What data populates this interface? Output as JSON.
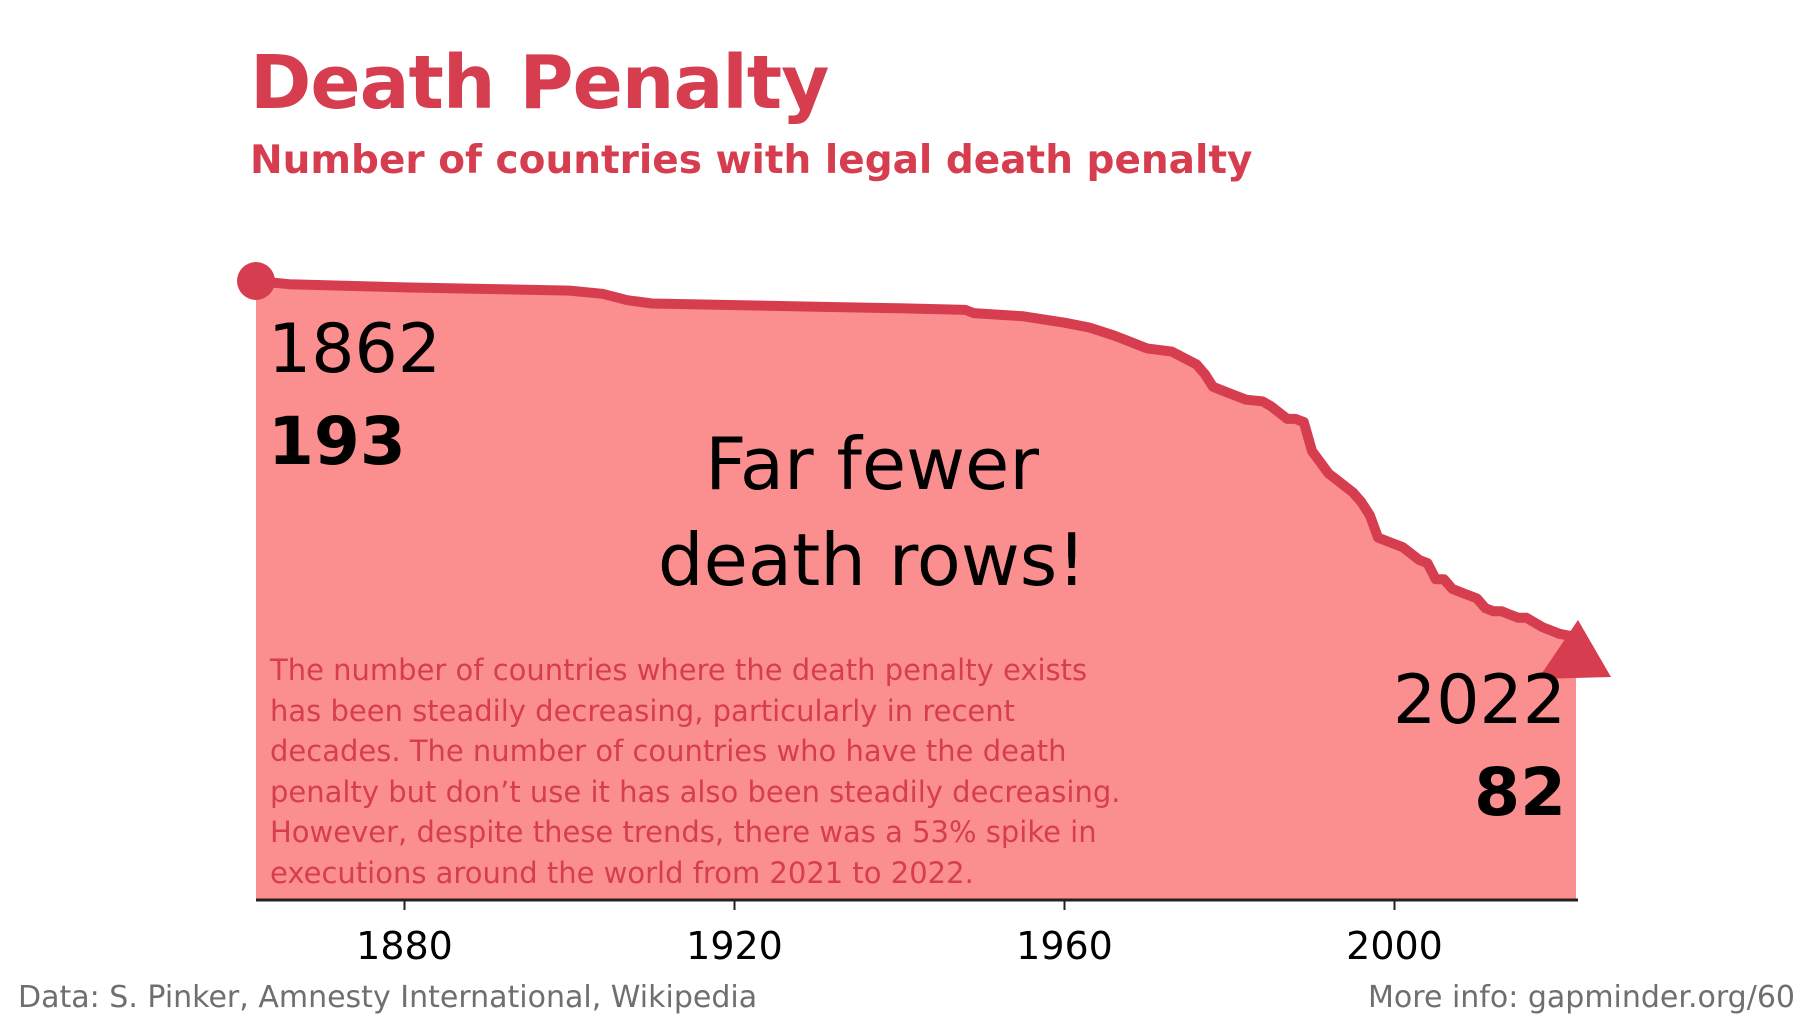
{
  "chart_data": {
    "type": "area",
    "title": "Death Penalty",
    "subtitle": "Number of countries with legal death penalty",
    "x": [
      1862,
      1866,
      1880,
      1890,
      1900,
      1904,
      1907,
      1910,
      1920,
      1930,
      1940,
      1948,
      1949,
      1955,
      1960,
      1963,
      1966,
      1968,
      1970,
      1973,
      1976,
      1977,
      1978,
      1980,
      1982,
      1984,
      1985,
      1987,
      1988,
      1989,
      1990,
      1992,
      1993,
      1995,
      1996,
      1997,
      1998,
      2000,
      2001,
      2002,
      2003,
      2004,
      2005,
      2006,
      2007,
      2008,
      2010,
      2011,
      2012,
      2013,
      2014,
      2015,
      2016,
      2018,
      2020,
      2022
    ],
    "y": [
      193,
      192,
      191,
      190.5,
      190,
      189,
      187,
      186,
      185.5,
      185,
      184.5,
      184,
      183,
      182,
      180,
      178.5,
      176,
      174,
      172,
      171,
      167,
      164,
      160,
      158,
      156,
      155.5,
      154,
      150,
      150,
      149,
      140,
      133,
      131,
      127,
      124,
      120,
      113,
      111,
      110,
      108,
      106,
      105,
      100,
      100,
      97,
      96,
      94,
      91,
      90,
      90,
      89,
      88,
      88,
      85,
      83,
      82
    ],
    "xlim": [
      1862,
      2022
    ],
    "ylim": [
      0,
      193
    ],
    "xticks": [
      1880,
      1920,
      1960,
      2000
    ],
    "xticklabels": [
      "1880",
      "1920",
      "1960",
      "2000"
    ],
    "grid": false,
    "legend": "none",
    "start": {
      "year": "1862",
      "value": "193"
    },
    "end": {
      "year": "2022",
      "value": "82"
    },
    "annotation": {
      "lines": [
        "Far fewer",
        "death rows!"
      ]
    },
    "colors": {
      "line": "#d63e50",
      "fill": "#fb8f8f",
      "axis": "#222222",
      "text": "#000000"
    }
  },
  "description": {
    "lines": [
      "The number of countries where the death penalty exists",
      "has been steadily decreasing, particularly in recent",
      "decades. The number of countries who have the death",
      "penalty but don’t use it has also been steadily decreasing.",
      "However, despite these trends, there was a 53% spike in",
      "executions around the world from 2021 to 2022."
    ]
  },
  "footer": {
    "source": "Data: S. Pinker, Amnesty International, Wikipedia",
    "more_info": "More info: gapminder.org/60"
  }
}
